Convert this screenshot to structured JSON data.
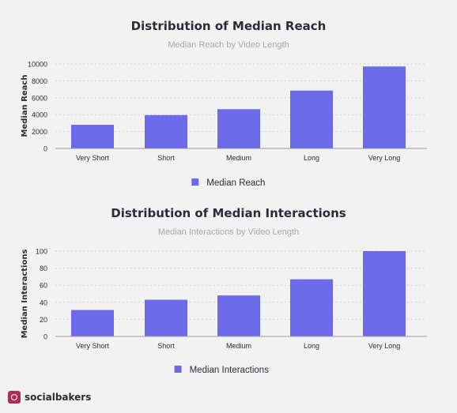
{
  "colors": {
    "bar": "#6b6bea",
    "grid": "#d4d4da",
    "axis": "#9a9aa4"
  },
  "chart_data": [
    {
      "type": "bar",
      "title": "Distribution of Median Reach",
      "subtitle": "Median Reach by Video Length",
      "xlabel": "",
      "ylabel": "Median Reach",
      "categories": [
        "Very Short",
        "Short",
        "Medium",
        "Long",
        "Very Long"
      ],
      "series": [
        {
          "name": "Median Reach",
          "values": [
            2800,
            3950,
            4650,
            6850,
            9700
          ]
        }
      ],
      "ylim": [
        0,
        10000
      ],
      "yticks": [
        0,
        2000,
        4000,
        6000,
        8000,
        10000
      ],
      "grid": true,
      "legend": "bottom-center"
    },
    {
      "type": "bar",
      "title": "Distribution of Median Interactions",
      "subtitle": "Median Interactions by Video Length",
      "xlabel": "",
      "ylabel": "Median Interactions",
      "categories": [
        "Very Short",
        "Short",
        "Medium",
        "Long",
        "Very Long"
      ],
      "series": [
        {
          "name": "Median Interactions",
          "values": [
            31,
            43,
            48,
            67,
            100
          ]
        }
      ],
      "ylim": [
        0,
        100
      ],
      "yticks": [
        0,
        20,
        40,
        60,
        80,
        100
      ],
      "grid": true,
      "legend": "bottom-center"
    }
  ],
  "brand": {
    "name": "socialbakers",
    "logo_icon": "socialbakers-logo-icon"
  }
}
